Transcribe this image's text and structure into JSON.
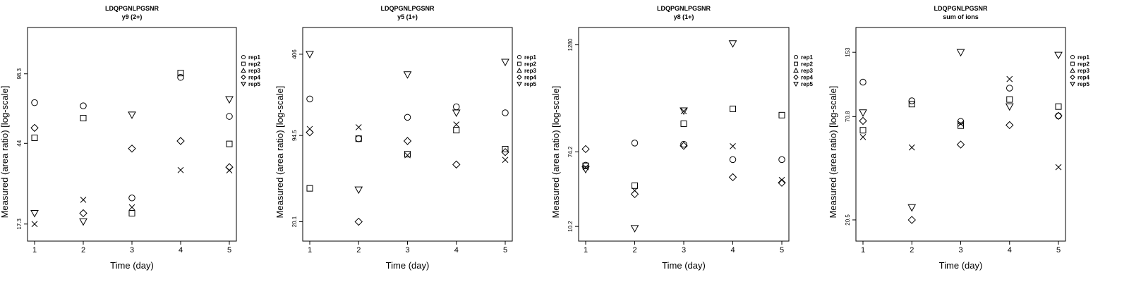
{
  "chart_data": [
    {
      "type": "scatter",
      "title": "LDQPGNLPGSNR",
      "subtitle": "y9 (2+)",
      "xlabel": "Time (day)",
      "ylabel": "Measured (area ratio) [log-scale]",
      "x_ticks": [
        "1",
        "2",
        "3",
        "4",
        "5"
      ],
      "y_scale": "log",
      "y_ticks": [
        17.3,
        44,
        98.3
      ],
      "y_tick_labels": [
        "17.3",
        "44",
        "98.3"
      ],
      "ylim": [
        14.2,
        168
      ],
      "legend": [
        "rep1",
        "rep2",
        "rep3",
        "rep4",
        "rep5"
      ],
      "legend_position": "right",
      "series": [
        {
          "name": "rep1",
          "marker": "circle",
          "x": [
            1,
            2,
            3,
            4,
            5
          ],
          "y": [
            70.4,
            67.9,
            23.4,
            94.4,
            60.1
          ]
        },
        {
          "name": "rep2",
          "marker": "square",
          "x": [
            1,
            2,
            3,
            4,
            5
          ],
          "y": [
            46.9,
            58.9,
            19.6,
            99.2,
            43.7
          ]
        },
        {
          "name": "rep3",
          "marker": "triangle",
          "x": [],
          "y": []
        },
        {
          "name": "rep4",
          "marker": "diamond",
          "x": [
            1,
            2,
            3,
            4,
            5
          ],
          "y": [
            52.6,
            19.6,
            41.4,
            45.2,
            33.4
          ]
        },
        {
          "name": "rep5",
          "marker": "triangle-down",
          "x": [
            1,
            2,
            3,
            5
          ],
          "y": [
            19.6,
            17.8,
            61.2,
            73.1
          ]
        },
        {
          "name": "",
          "marker": "x",
          "x": [
            1,
            2,
            3,
            4,
            5
          ],
          "y": [
            17.3,
            22.9,
            21.0,
            32.3,
            32.2
          ]
        }
      ]
    },
    {
      "type": "scatter",
      "title": "LDQPGNLPGSNR",
      "subtitle": "y5 (1+)",
      "xlabel": "Time (day)",
      "ylabel": "Measured (area ratio) [log-scale]",
      "x_ticks": [
        "1",
        "2",
        "3",
        "4",
        "5"
      ],
      "y_scale": "log",
      "y_ticks": [
        20.1,
        94.5,
        406
      ],
      "y_tick_labels": [
        "20.1",
        "94.5",
        "406"
      ],
      "ylim": [
        14.2,
        656
      ],
      "legend": [
        "rep1",
        "rep2",
        "rep3",
        "rep4",
        "rep5"
      ],
      "legend_position": "right",
      "series": [
        {
          "name": "rep1",
          "marker": "circle",
          "x": [
            1,
            2,
            3,
            4,
            5
          ],
          "y": [
            182,
            89.2,
            131,
            158,
            142
          ]
        },
        {
          "name": "rep2",
          "marker": "square",
          "x": [
            1,
            2,
            3,
            4,
            5
          ],
          "y": [
            36.6,
            89.2,
            67.6,
            104,
            74
          ]
        },
        {
          "name": "rep3",
          "marker": "triangle",
          "x": [],
          "y": []
        },
        {
          "name": "rep4",
          "marker": "diamond",
          "x": [
            1,
            2,
            3,
            4,
            5
          ],
          "y": [
            99.9,
            20.1,
            85.6,
            56.1,
            70.1
          ]
        },
        {
          "name": "rep5",
          "marker": "triangle-down",
          "x": [
            1,
            2,
            3,
            4,
            5
          ],
          "y": [
            406,
            35.7,
            282,
            142,
            353
          ]
        },
        {
          "name": "",
          "marker": "x",
          "x": [
            1,
            2,
            3,
            4,
            5
          ],
          "y": [
            106.2,
            109.5,
            66.3,
            115,
            61
          ]
        }
      ]
    },
    {
      "type": "scatter",
      "title": "LDQPGNLPGSNR",
      "subtitle": "y8 (1+)",
      "xlabel": "Time (day)",
      "ylabel": "Measured (area ratio) [log-scale]",
      "x_ticks": [
        "1",
        "2",
        "3",
        "4",
        "5"
      ],
      "y_scale": "log",
      "y_ticks": [
        10.2,
        74.2,
        1280
      ],
      "y_tick_labels": [
        "10.2",
        "74.2",
        "1280"
      ],
      "ylim": [
        6.9,
        2030
      ],
      "legend": [
        "rep1",
        "rep2",
        "rep3",
        "rep4",
        "rep5"
      ],
      "legend_position": "right",
      "series": [
        {
          "name": "rep1",
          "marker": "circle",
          "x": [
            1,
            2,
            3,
            4,
            5
          ],
          "y": [
            52,
            93.8,
            90.9,
            60.4,
            60.4
          ]
        },
        {
          "name": "rep2",
          "marker": "square",
          "x": [
            1,
            2,
            3,
            4,
            5
          ],
          "y": [
            51.1,
            30.2,
            157,
            233,
            197
          ]
        },
        {
          "name": "rep3",
          "marker": "triangle",
          "x": [],
          "y": []
        },
        {
          "name": "rep4",
          "marker": "diamond",
          "x": [
            1,
            2,
            3,
            4,
            5
          ],
          "y": [
            79.9,
            24.1,
            87.1,
            37.8,
            32.6
          ]
        },
        {
          "name": "rep5",
          "marker": "triangle-down",
          "x": [
            1,
            2,
            3,
            4
          ],
          "y": [
            46.7,
            9.7,
            222,
            1325
          ]
        },
        {
          "name": "",
          "marker": "x",
          "x": [
            1,
            2,
            3,
            4,
            5
          ],
          "y": [
            49.3,
            26.5,
            219,
            86.3,
            35.1
          ]
        }
      ]
    },
    {
      "type": "scatter",
      "title": "LDQPGNLPGSNR",
      "subtitle": "sum of ions",
      "xlabel": "Time (day)",
      "ylabel": "Measured (area ratio) [log-scale]",
      "x_ticks": [
        "1",
        "2",
        "3",
        "4",
        "5"
      ],
      "y_scale": "log",
      "y_ticks": [
        20.5,
        70.8,
        153
      ],
      "y_tick_labels": [
        "20.5",
        "70.8",
        "153"
      ],
      "ylim": [
        15.9,
        206
      ],
      "legend": [
        "rep1",
        "rep2",
        "rep3",
        "rep4",
        "rep5"
      ],
      "legend_position": "right",
      "series": [
        {
          "name": "rep1",
          "marker": "circle",
          "x": [
            1,
            2,
            3,
            4,
            5
          ],
          "y": [
            107,
            85.5,
            66.8,
            99.6,
            71.4
          ]
        },
        {
          "name": "rep2",
          "marker": "square",
          "x": [
            1,
            2,
            3,
            4,
            5
          ],
          "y": [
            60.1,
            82.2,
            63.5,
            86.9,
            79.8
          ]
        },
        {
          "name": "rep3",
          "marker": "triangle",
          "x": [],
          "y": []
        },
        {
          "name": "rep4",
          "marker": "diamond",
          "x": [
            1,
            2,
            3,
            4,
            5
          ],
          "y": [
            67.2,
            20.5,
            50.6,
            63.9,
            71.4
          ]
        },
        {
          "name": "rep5",
          "marker": "triangle-down",
          "x": [
            1,
            2,
            3,
            4,
            5
          ],
          "y": [
            74.2,
            23.8,
            153,
            79.8,
            148
          ]
        },
        {
          "name": "",
          "marker": "x",
          "x": [
            1,
            2,
            3,
            4,
            5
          ],
          "y": [
            55.4,
            48.9,
            64.9,
            111,
            38.6
          ]
        }
      ]
    }
  ]
}
